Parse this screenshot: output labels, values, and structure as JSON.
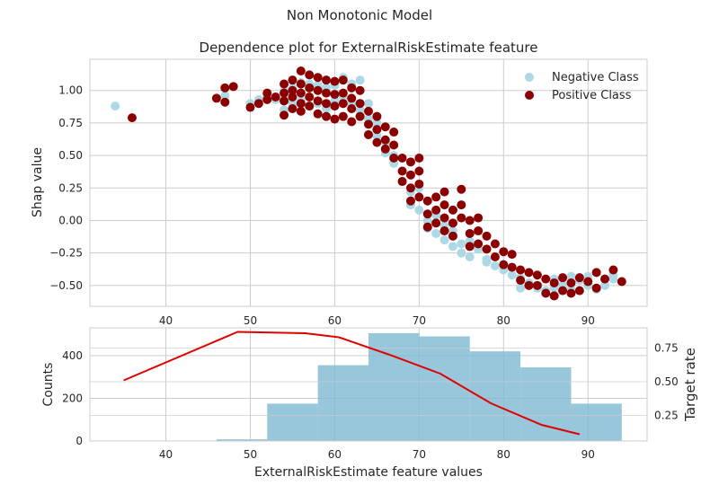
{
  "figure": {
    "suptitle": "Non Monotonic Model"
  },
  "chart_data": [
    {
      "type": "scatter",
      "title": "Dependence plot for ExternalRiskEstimate feature",
      "xlabel": "",
      "ylabel": "Shap value",
      "xlim": [
        31,
        97
      ],
      "ylim": [
        -0.66,
        1.24
      ],
      "xticks": [
        40,
        50,
        60,
        70,
        80,
        90
      ],
      "xtick_labels": [
        "40",
        "50",
        "60",
        "70",
        "80",
        "90"
      ],
      "yticks": [
        -0.5,
        -0.25,
        0.0,
        0.25,
        0.5,
        0.75,
        1.0
      ],
      "ytick_labels": [
        "−0.50",
        "−0.25",
        "0.00",
        "0.25",
        "0.50",
        "0.75",
        "1.00"
      ],
      "grid": true,
      "legend": "top-right",
      "series": [
        {
          "name": "Negative Class",
          "color": "#add8e6",
          "points": [
            [
              34,
              0.88
            ],
            [
              47,
              0.96
            ],
            [
              48,
              1.03
            ],
            [
              50,
              0.9
            ],
            [
              51,
              0.93
            ],
            [
              52,
              0.96
            ],
            [
              53,
              0.93
            ],
            [
              54,
              1.0
            ],
            [
              54,
              0.85
            ],
            [
              55,
              1.02
            ],
            [
              55,
              0.9
            ],
            [
              56,
              1.06
            ],
            [
              56,
              0.92
            ],
            [
              57,
              1.05
            ],
            [
              57,
              0.88
            ],
            [
              58,
              1.04
            ],
            [
              58,
              0.9
            ],
            [
              59,
              1.02
            ],
            [
              59,
              0.86
            ],
            [
              60,
              1.04
            ],
            [
              60,
              0.92
            ],
            [
              61,
              1.1
            ],
            [
              61,
              0.95
            ],
            [
              62,
              1.05
            ],
            [
              62,
              0.9
            ],
            [
              63,
              1.08
            ],
            [
              63,
              0.85
            ],
            [
              64,
              0.9
            ],
            [
              64,
              0.78
            ],
            [
              65,
              0.75
            ],
            [
              65,
              0.65
            ],
            [
              66,
              0.6
            ],
            [
              66,
              0.52
            ],
            [
              67,
              0.44
            ],
            [
              67,
              0.5
            ],
            [
              68,
              0.38
            ],
            [
              68,
              0.3
            ],
            [
              69,
              0.22
            ],
            [
              69,
              0.12
            ],
            [
              70,
              0.25
            ],
            [
              70,
              0.08
            ],
            [
              71,
              0.0
            ],
            [
              71,
              -0.06
            ],
            [
              72,
              0.04
            ],
            [
              72,
              -0.1
            ],
            [
              73,
              -0.15
            ],
            [
              73,
              -0.04
            ],
            [
              74,
              -0.2
            ],
            [
              74,
              -0.08
            ],
            [
              75,
              -0.18
            ],
            [
              75,
              -0.25
            ],
            [
              76,
              -0.28
            ],
            [
              76,
              -0.16
            ],
            [
              77,
              -0.22
            ],
            [
              78,
              -0.3
            ],
            [
              78,
              -0.32
            ],
            [
              79,
              -0.35
            ],
            [
              80,
              -0.38
            ],
            [
              81,
              -0.42
            ],
            [
              82,
              -0.44
            ],
            [
              82,
              -0.52
            ],
            [
              83,
              -0.48
            ],
            [
              84,
              -0.5
            ],
            [
              84,
              -0.52
            ],
            [
              85,
              -0.54
            ],
            [
              86,
              -0.45
            ],
            [
              86,
              -0.52
            ],
            [
              87,
              -0.5
            ],
            [
              88,
              -0.43
            ],
            [
              88,
              -0.53
            ],
            [
              89,
              -0.46
            ],
            [
              90,
              -0.5
            ],
            [
              90,
              -0.43
            ],
            [
              91,
              -0.53
            ],
            [
              92,
              -0.5
            ],
            [
              93,
              -0.45
            ],
            [
              93,
              -0.42
            ]
          ]
        },
        {
          "name": "Positive Class",
          "color": "#8b0000",
          "points": [
            [
              36,
              0.79
            ],
            [
              46,
              0.94
            ],
            [
              47,
              1.02
            ],
            [
              47,
              0.91
            ],
            [
              48,
              1.03
            ],
            [
              50,
              0.87
            ],
            [
              51,
              0.9
            ],
            [
              52,
              0.98
            ],
            [
              52,
              0.93
            ],
            [
              53,
              0.95
            ],
            [
              54,
              1.05
            ],
            [
              54,
              0.98
            ],
            [
              54,
              0.92
            ],
            [
              54,
              0.81
            ],
            [
              55,
              1.08
            ],
            [
              55,
              1.0
            ],
            [
              55,
              0.95
            ],
            [
              55,
              0.86
            ],
            [
              56,
              1.15
            ],
            [
              56,
              1.05
            ],
            [
              56,
              0.98
            ],
            [
              56,
              0.9
            ],
            [
              56,
              0.84
            ],
            [
              57,
              1.12
            ],
            [
              57,
              1.02
            ],
            [
              57,
              0.95
            ],
            [
              57,
              0.88
            ],
            [
              58,
              1.1
            ],
            [
              58,
              1.0
            ],
            [
              58,
              0.92
            ],
            [
              58,
              0.82
            ],
            [
              59,
              1.08
            ],
            [
              59,
              0.98
            ],
            [
              59,
              0.9
            ],
            [
              59,
              0.8
            ],
            [
              60,
              1.07
            ],
            [
              60,
              0.97
            ],
            [
              60,
              0.88
            ],
            [
              60,
              0.78
            ],
            [
              61,
              1.08
            ],
            [
              61,
              0.98
            ],
            [
              61,
              0.9
            ],
            [
              61,
              0.8
            ],
            [
              62,
              1.02
            ],
            [
              62,
              0.94
            ],
            [
              62,
              0.86
            ],
            [
              62,
              0.76
            ],
            [
              63,
              1.0
            ],
            [
              63,
              0.9
            ],
            [
              63,
              0.8
            ],
            [
              64,
              0.84
            ],
            [
              64,
              0.74
            ],
            [
              64,
              0.66
            ],
            [
              65,
              0.8
            ],
            [
              65,
              0.7
            ],
            [
              65,
              0.6
            ],
            [
              66,
              0.72
            ],
            [
              66,
              0.62
            ],
            [
              66,
              0.55
            ],
            [
              67,
              0.68
            ],
            [
              67,
              0.58
            ],
            [
              67,
              0.48
            ],
            [
              68,
              0.48
            ],
            [
              68,
              0.38
            ],
            [
              68,
              0.3
            ],
            [
              69,
              0.45
            ],
            [
              69,
              0.35
            ],
            [
              69,
              0.25
            ],
            [
              69,
              0.15
            ],
            [
              70,
              0.48
            ],
            [
              70,
              0.38
            ],
            [
              70,
              0.28
            ],
            [
              70,
              0.18
            ],
            [
              71,
              0.15
            ],
            [
              71,
              0.05
            ],
            [
              71,
              -0.05
            ],
            [
              72,
              0.18
            ],
            [
              72,
              0.08
            ],
            [
              72,
              -0.02
            ],
            [
              73,
              0.22
            ],
            [
              73,
              0.12
            ],
            [
              73,
              0.02
            ],
            [
              73,
              -0.08
            ],
            [
              74,
              0.08
            ],
            [
              74,
              -0.02
            ],
            [
              74,
              -0.12
            ],
            [
              75,
              0.24
            ],
            [
              75,
              0.12
            ],
            [
              75,
              0.02
            ],
            [
              76,
              0.0
            ],
            [
              76,
              -0.1
            ],
            [
              76,
              -0.2
            ],
            [
              77,
              0.02
            ],
            [
              77,
              -0.08
            ],
            [
              77,
              -0.18
            ],
            [
              78,
              -0.12
            ],
            [
              78,
              -0.22
            ],
            [
              79,
              -0.18
            ],
            [
              79,
              -0.28
            ],
            [
              80,
              -0.24
            ],
            [
              80,
              -0.34
            ],
            [
              81,
              -0.26
            ],
            [
              81,
              -0.36
            ],
            [
              82,
              -0.38
            ],
            [
              82,
              -0.46
            ],
            [
              83,
              -0.4
            ],
            [
              83,
              -0.5
            ],
            [
              84,
              -0.42
            ],
            [
              84,
              -0.5
            ],
            [
              85,
              -0.45
            ],
            [
              85,
              -0.56
            ],
            [
              86,
              -0.48
            ],
            [
              86,
              -0.58
            ],
            [
              87,
              -0.44
            ],
            [
              87,
              -0.54
            ],
            [
              88,
              -0.48
            ],
            [
              88,
              -0.56
            ],
            [
              89,
              -0.44
            ],
            [
              89,
              -0.54
            ],
            [
              90,
              -0.47
            ],
            [
              91,
              -0.4
            ],
            [
              91,
              -0.52
            ],
            [
              92,
              -0.45
            ],
            [
              93,
              -0.38
            ],
            [
              94,
              -0.47
            ]
          ]
        }
      ]
    },
    {
      "type": "bar",
      "xlabel": "ExternalRiskEstimate feature values",
      "ylabel": "Counts",
      "xlim": [
        31,
        97
      ],
      "ylim": [
        0,
        530
      ],
      "xticks": [
        40,
        50,
        60,
        70,
        80,
        90
      ],
      "xtick_labels": [
        "40",
        "50",
        "60",
        "70",
        "80",
        "90"
      ],
      "yticks": [
        0,
        200,
        400
      ],
      "ytick_labels": [
        "0",
        "200",
        "400"
      ],
      "bar_color": "#7eb8d2",
      "bins": [
        {
          "x0": 34,
          "x1": 40,
          "count": 0
        },
        {
          "x0": 40,
          "x1": 46,
          "count": 0
        },
        {
          "x0": 46,
          "x1": 52,
          "count": 8
        },
        {
          "x0": 52,
          "x1": 58,
          "count": 175
        },
        {
          "x0": 58,
          "x1": 64,
          "count": 355
        },
        {
          "x0": 64,
          "x1": 70,
          "count": 505
        },
        {
          "x0": 70,
          "x1": 76,
          "count": 490
        },
        {
          "x0": 76,
          "x1": 82,
          "count": 420
        },
        {
          "x0": 82,
          "x1": 88,
          "count": 345
        },
        {
          "x0": 88,
          "x1": 94,
          "count": 175
        }
      ],
      "secondary_axis": {
        "label": "Target rate",
        "color": "#e00000",
        "ylim": [
          0.06,
          0.9
        ],
        "yticks": [
          0.25,
          0.5,
          0.75
        ],
        "ytick_labels": [
          "0.25",
          "0.50",
          "0.75"
        ],
        "line": {
          "x": [
            35,
            48.5,
            56.5,
            60.5,
            66.5,
            72.5,
            78.5,
            84.5,
            89
          ],
          "y": [
            0.51,
            0.87,
            0.86,
            0.83,
            0.7,
            0.56,
            0.34,
            0.18,
            0.11
          ]
        }
      }
    }
  ]
}
